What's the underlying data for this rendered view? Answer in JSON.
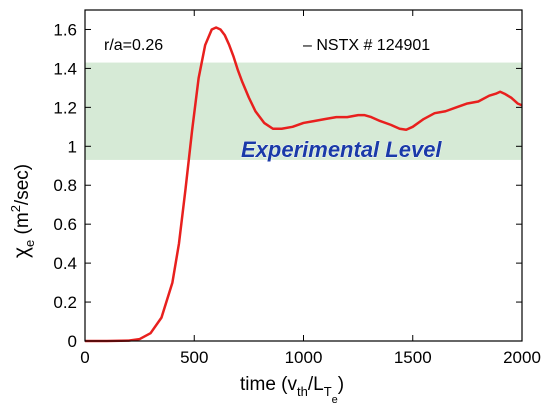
{
  "chart_data": {
    "type": "line",
    "xlabel": {
      "main": "time (v",
      "sub1": "th",
      "mid": "/L",
      "sub2": "T",
      "subsub": "e",
      "end": ")"
    },
    "ylabel": {
      "chi": "χ",
      "sub": "e",
      "rest": " (m",
      "sup": "2",
      "end": "/sec)"
    },
    "xlim": [
      0,
      2000
    ],
    "ylim": [
      0,
      1.7
    ],
    "xticks": [
      0,
      500,
      1000,
      1500,
      2000
    ],
    "xtick_labels": [
      "0",
      "500",
      "1000",
      "1500",
      "2000"
    ],
    "yticks": [
      0,
      0.2,
      0.4,
      0.6,
      0.8,
      1.0,
      1.2,
      1.4,
      1.6
    ],
    "ytick_labels": [
      "0",
      "0.2",
      "0.4",
      "0.6",
      "0.8",
      "1",
      "1.2",
      "1.4",
      "1.6"
    ],
    "band": {
      "y0": 0.93,
      "y1": 1.43,
      "color": "#d6ead6",
      "label": "Experimental Level"
    },
    "annotations": {
      "radius": "r/a=0.26",
      "legend": "– NSTX # 124901"
    },
    "series": [
      {
        "color": "#e8201e",
        "x": [
          0,
          100,
          200,
          250,
          300,
          350,
          400,
          430,
          460,
          490,
          520,
          550,
          580,
          600,
          620,
          640,
          660,
          680,
          700,
          720,
          750,
          780,
          820,
          860,
          900,
          950,
          1000,
          1050,
          1100,
          1150,
          1200,
          1250,
          1280,
          1310,
          1350,
          1400,
          1440,
          1470,
          1500,
          1550,
          1600,
          1650,
          1700,
          1750,
          1800,
          1850,
          1880,
          1900,
          1920,
          1950,
          1980,
          2000
        ],
        "y": [
          0,
          0,
          0.002,
          0.01,
          0.04,
          0.12,
          0.3,
          0.5,
          0.78,
          1.08,
          1.35,
          1.52,
          1.6,
          1.61,
          1.6,
          1.57,
          1.52,
          1.46,
          1.39,
          1.33,
          1.25,
          1.18,
          1.12,
          1.09,
          1.09,
          1.1,
          1.12,
          1.13,
          1.14,
          1.15,
          1.15,
          1.16,
          1.16,
          1.15,
          1.13,
          1.11,
          1.09,
          1.085,
          1.1,
          1.14,
          1.17,
          1.18,
          1.2,
          1.22,
          1.23,
          1.26,
          1.27,
          1.28,
          1.27,
          1.25,
          1.22,
          1.21
        ]
      }
    ]
  }
}
